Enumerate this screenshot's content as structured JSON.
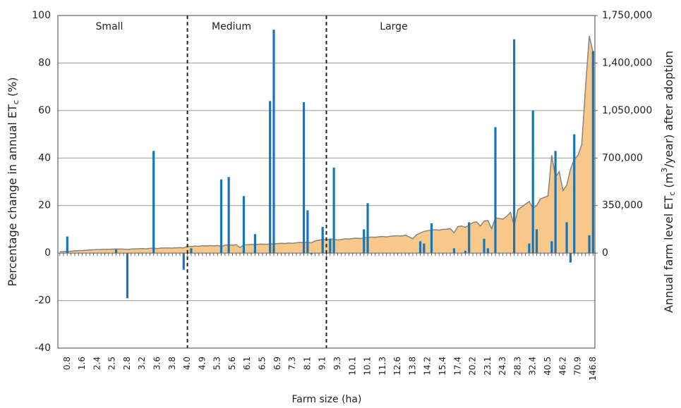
{
  "chart_data": {
    "type": "bar",
    "annotations": [
      "Small",
      "Medium",
      "Large"
    ],
    "x_label": "Farm size (ha)",
    "y_label": [
      "Percentage change in annual ET",
      "c",
      " (%)"
    ],
    "y2_label": [
      "Annual farm level ET",
      "c",
      " (m",
      "3",
      "/year) after adoption"
    ],
    "categories": [
      null,
      null,
      "0.8",
      null,
      null,
      null,
      "1.6",
      null,
      null,
      null,
      "2.4",
      null,
      null,
      null,
      "2.5",
      null,
      null,
      null,
      "2.8",
      null,
      null,
      null,
      "3.2",
      null,
      null,
      null,
      "3.6",
      null,
      null,
      null,
      "3.8",
      null,
      null,
      null,
      "4.0",
      null,
      null,
      null,
      "4.9",
      null,
      null,
      null,
      "5.3",
      null,
      null,
      null,
      "5.6",
      null,
      null,
      null,
      "6.1",
      null,
      null,
      null,
      "6.5",
      null,
      null,
      null,
      "6.9",
      null,
      null,
      null,
      "7.3",
      null,
      null,
      null,
      "8.1",
      null,
      null,
      null,
      "9.1",
      null,
      null,
      null,
      "9.3",
      null,
      null,
      null,
      "10.1",
      null,
      null,
      null,
      "10.1",
      null,
      null,
      null,
      "11.3",
      null,
      null,
      null,
      "12.6",
      null,
      null,
      null,
      "13.8",
      null,
      null,
      null,
      "14.2",
      null,
      null,
      null,
      "15.4",
      null,
      null,
      null,
      "17.4",
      null,
      null,
      null,
      "20.2",
      null,
      null,
      null,
      "23.1",
      null,
      null,
      null,
      "24.3",
      null,
      null,
      null,
      "28.3",
      null,
      null,
      null,
      "32.4",
      null,
      null,
      null,
      "40.5",
      null,
      null,
      null,
      "46.2",
      null,
      null,
      null,
      "70.9",
      null,
      null,
      null,
      "146.8"
    ],
    "series": [
      {
        "type": "area",
        "axis": "y2",
        "color": "#f8c88a",
        "line_color": "#858585",
        "values": [
          9000,
          11000,
          12000,
          14000,
          16000,
          18000,
          19000,
          21000,
          23000,
          25000,
          26000,
          27000,
          28000,
          28000,
          29000,
          30000,
          30000,
          29000,
          27000,
          30000,
          31000,
          32000,
          33000,
          31000,
          35000,
          36000,
          33000,
          37000,
          38000,
          38000,
          37000,
          39000,
          40000,
          38000,
          50000,
          48000,
          52000,
          50000,
          54000,
          52000,
          55000,
          53000,
          56000,
          50000,
          58000,
          60000,
          57000,
          62000,
          40000,
          61000,
          62000,
          64000,
          63000,
          65000,
          66000,
          64000,
          68000,
          67000,
          70000,
          72000,
          71000,
          74000,
          72000,
          76000,
          78000,
          77000,
          80000,
          75000,
          90000,
          95000,
          100000,
          98000,
          104000,
          102000,
          96000,
          100000,
          105000,
          103000,
          108000,
          110000,
          107000,
          112000,
          115000,
          118000,
          116000,
          120000,
          122000,
          119000,
          124000,
          126000,
          128000,
          125000,
          132000,
          120000,
          105000,
          135000,
          148000,
          160000,
          165000,
          170000,
          172000,
          168000,
          175000,
          176000,
          180000,
          150000,
          195000,
          200000,
          190000,
          205000,
          225000,
          230000,
          200000,
          235000,
          240000,
          180000,
          260000,
          255000,
          250000,
          270000,
          300000,
          200000,
          320000,
          340000,
          360000,
          380000,
          330000,
          350000,
          400000,
          410000,
          420000,
          720000,
          560000,
          600000,
          460000,
          500000,
          620000,
          690000,
          720000,
          800000,
          1220000,
          1600000,
          1480000
        ]
      },
      {
        "type": "bar",
        "color": "#1a75b5",
        "values": [
          null,
          null,
          7,
          null,
          null,
          null,
          null,
          null,
          null,
          null,
          null,
          null,
          null,
          null,
          null,
          1.5,
          null,
          null,
          -19,
          null,
          null,
          null,
          null,
          null,
          null,
          43,
          null,
          null,
          null,
          null,
          null,
          null,
          null,
          -7,
          null,
          2,
          null,
          null,
          null,
          null,
          null,
          null,
          null,
          31,
          null,
          32,
          null,
          null,
          null,
          24,
          null,
          null,
          8,
          null,
          null,
          null,
          64,
          94,
          null,
          null,
          null,
          null,
          null,
          null,
          null,
          63.5,
          18,
          -0.5,
          null,
          null,
          11,
          null,
          6,
          36,
          null,
          null,
          null,
          null,
          null,
          null,
          null,
          10,
          21,
          null,
          null,
          null,
          null,
          null,
          null,
          null,
          null,
          null,
          null,
          null,
          null,
          null,
          5,
          4,
          null,
          12.5,
          null,
          null,
          null,
          null,
          null,
          2,
          null,
          null,
          1,
          13,
          null,
          null,
          null,
          6,
          2,
          null,
          53,
          null,
          null,
          null,
          null,
          90,
          null,
          null,
          null,
          4,
          60,
          10,
          null,
          null,
          null,
          5,
          43,
          null,
          null,
          13,
          -4,
          50,
          null,
          null,
          null,
          7.5,
          85
        ]
      }
    ],
    "ylim": [
      -40,
      100
    ],
    "yticks": [
      -40,
      -20,
      0,
      20,
      40,
      60,
      80,
      100
    ],
    "y2lim": [
      -700000,
      1750000
    ],
    "y2ticks": [
      {
        "value": 0,
        "label": "0"
      },
      {
        "value": 350000,
        "label": "350,000"
      },
      {
        "value": 700000,
        "label": "700,000"
      },
      {
        "value": 1050000,
        "label": "1,050,000"
      },
      {
        "value": 1400000,
        "label": "1,400,000"
      },
      {
        "value": 1750000,
        "label": "1,750,000"
      }
    ],
    "grid": true
  }
}
